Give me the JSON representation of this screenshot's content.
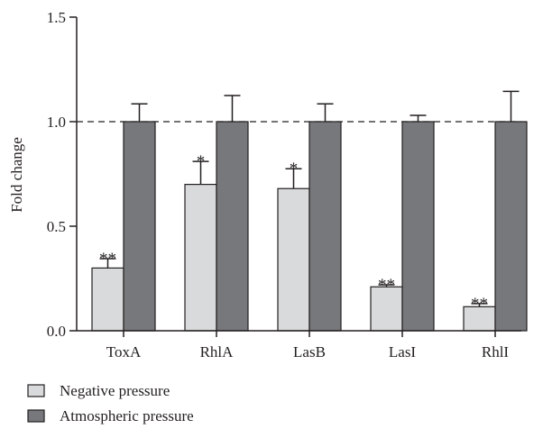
{
  "chart_data": {
    "type": "bar",
    "title": "",
    "xlabel": "",
    "ylabel": "Fold change",
    "ylim": [
      0,
      1.5
    ],
    "yticks": [
      "0.0",
      "0.5",
      "1.0",
      "1.5"
    ],
    "ytick_values": [
      0,
      0.5,
      1.0,
      1.5
    ],
    "categories": [
      "ToxA",
      "RhlA",
      "LasB",
      "LasI",
      "RhlI"
    ],
    "reference_line": 1.0,
    "grid": false,
    "legend_position": "bottom-left",
    "series": [
      {
        "name": "Negative pressure",
        "color": "#d9dadb",
        "values": [
          0.3,
          0.7,
          0.68,
          0.21,
          0.115
        ],
        "errors": [
          0.045,
          0.11,
          0.095,
          0.01,
          0.015
        ],
        "significance": [
          "**",
          "*",
          "*",
          "**",
          "**"
        ]
      },
      {
        "name": "Atmospheric pressure",
        "color": "#77787b",
        "values": [
          1.0,
          1.0,
          1.0,
          1.0,
          1.0
        ],
        "errors": [
          0.085,
          0.125,
          0.085,
          0.03,
          0.145
        ],
        "significance": [
          "",
          "",
          "",
          "",
          ""
        ]
      }
    ]
  }
}
